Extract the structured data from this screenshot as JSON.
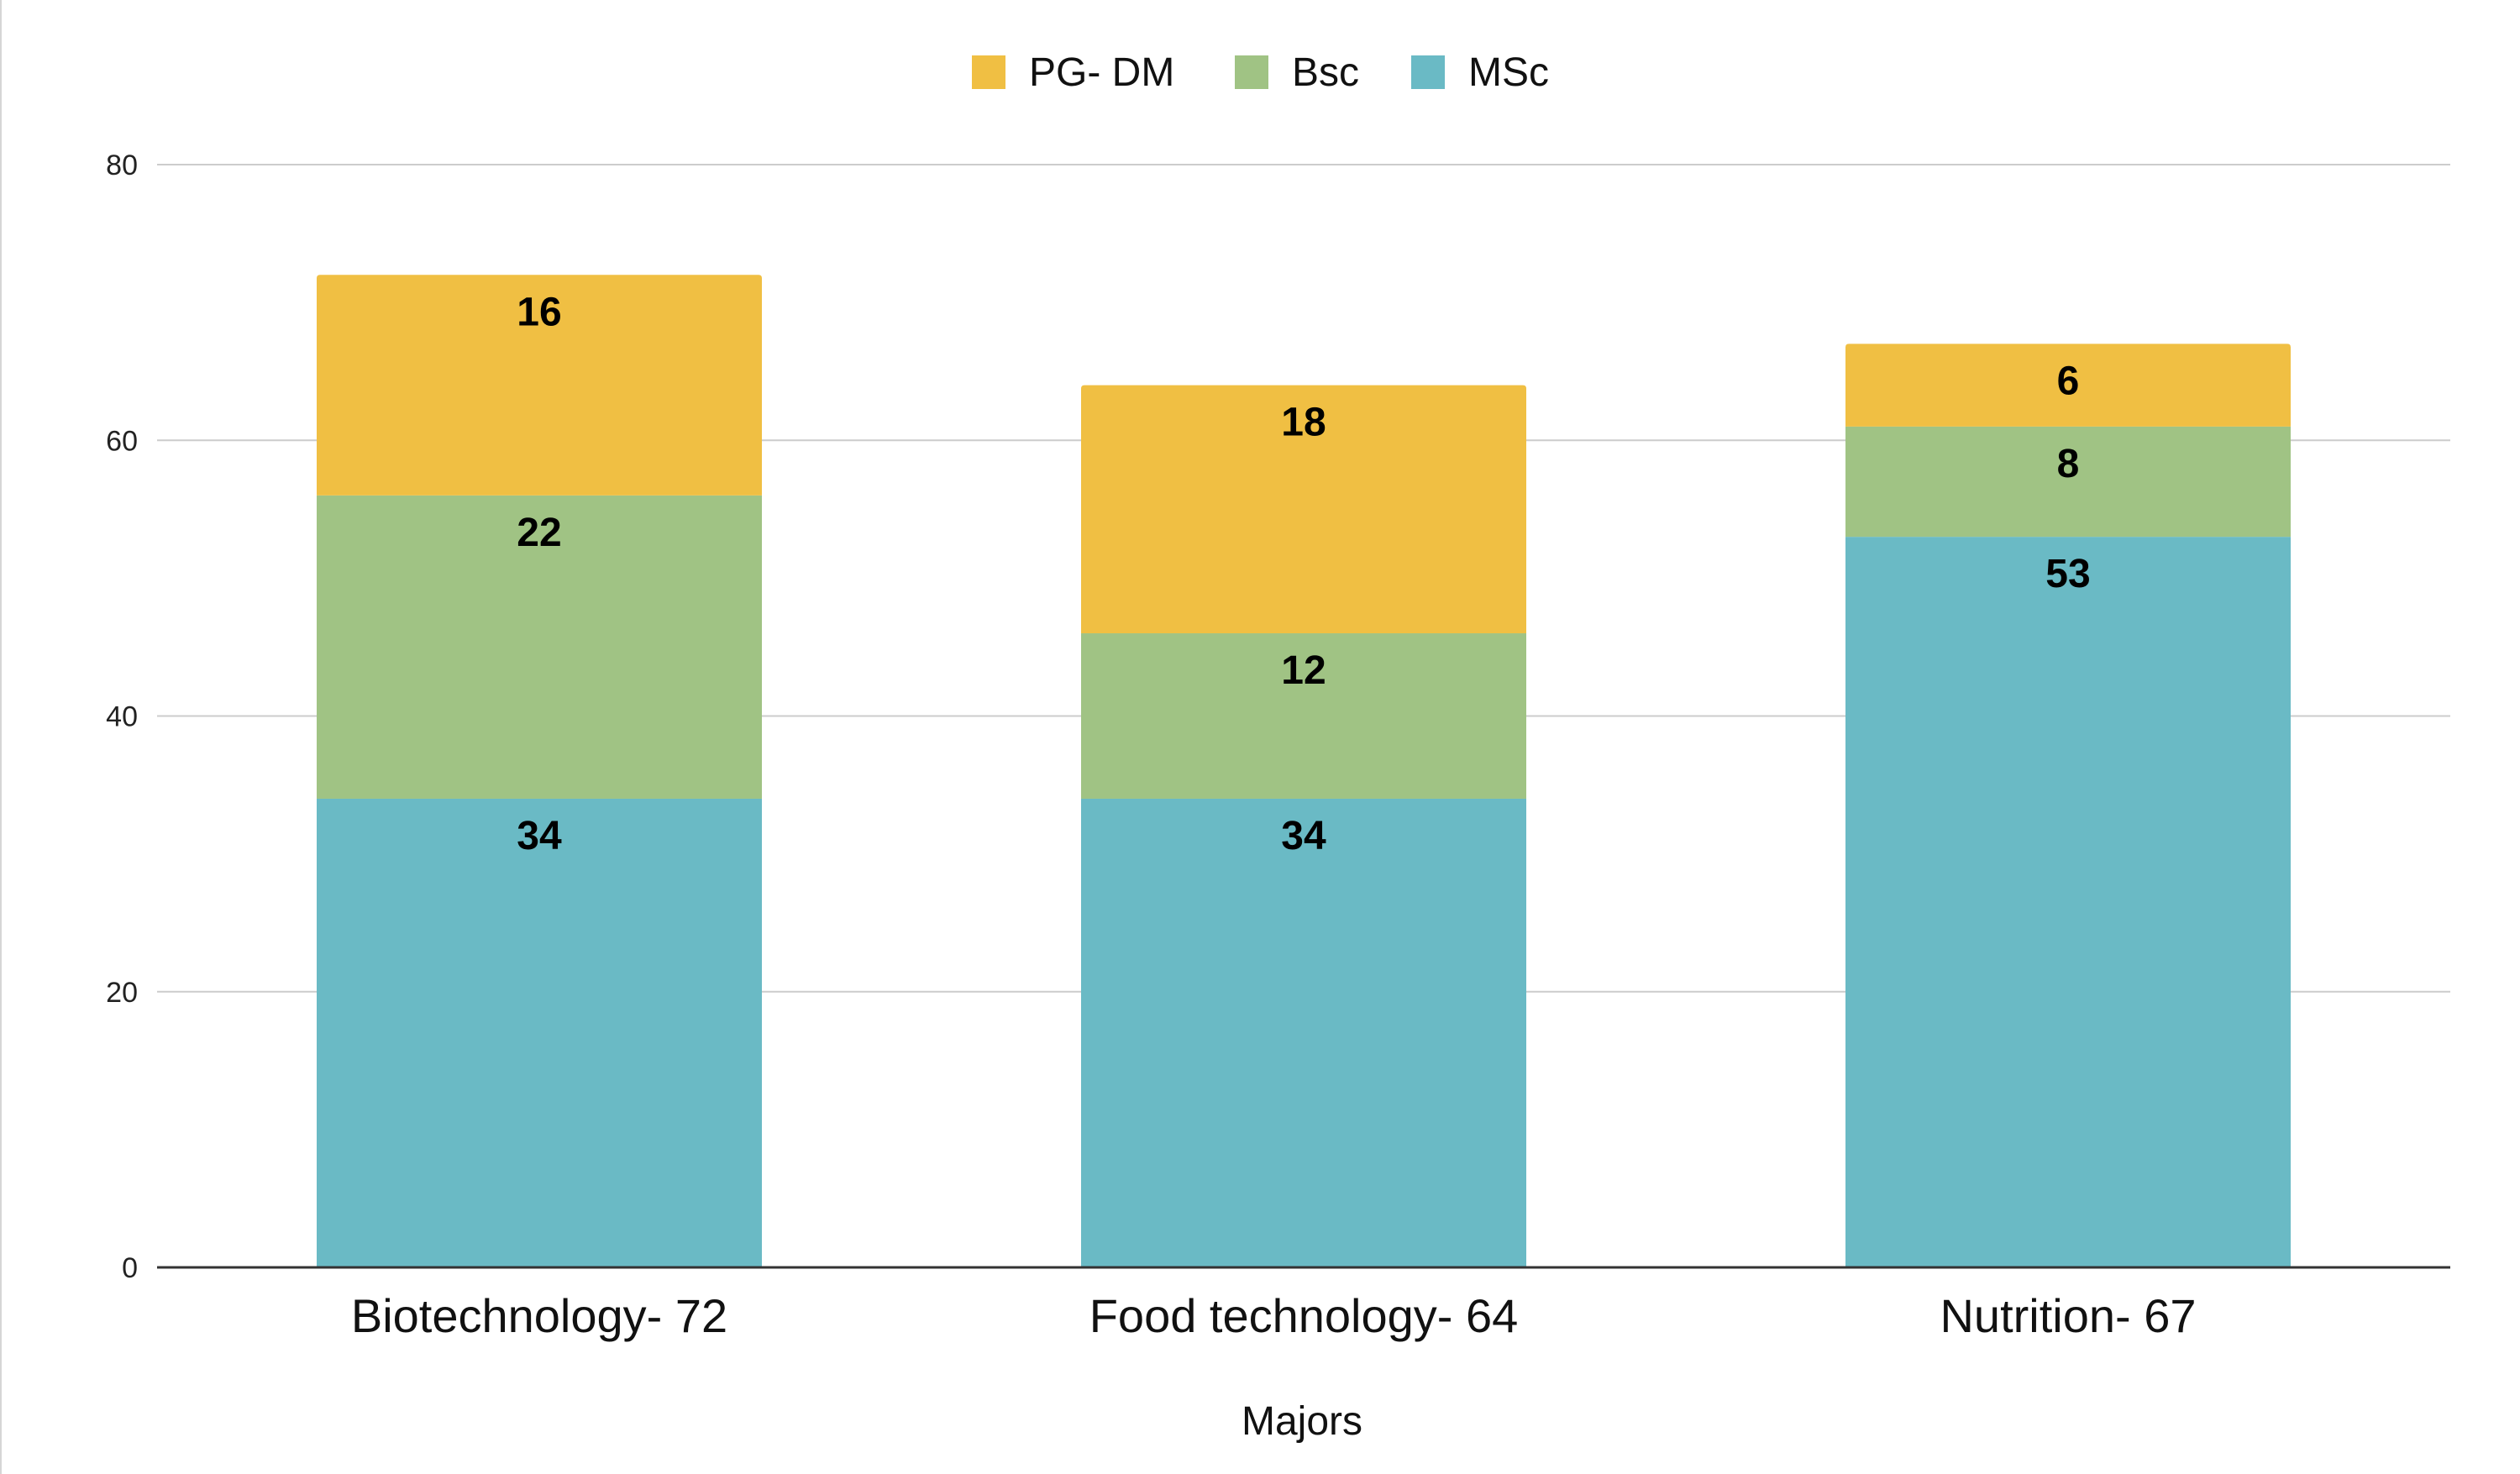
{
  "chart_data": {
    "type": "bar",
    "stacked": true,
    "title": "",
    "xlabel": "Majors",
    "ylabel": "",
    "ylim": [
      0,
      80
    ],
    "yticks": [
      0,
      20,
      40,
      60,
      80
    ],
    "grid": true,
    "legend_position": "top-center",
    "categories": [
      "Biotechnology- 72",
      "Food technology- 64",
      "Nutrition- 67"
    ],
    "series": [
      {
        "name": "MSc",
        "color": "#6abac5",
        "values": [
          34,
          34,
          53
        ]
      },
      {
        "name": "Bsc",
        "color": "#a0c384",
        "values": [
          22,
          12,
          8
        ]
      },
      {
        "name": "PG- DM",
        "color": "#f0bf43",
        "values": [
          16,
          18,
          6
        ]
      }
    ],
    "legend_order": [
      "PG- DM",
      "Bsc",
      "MSc"
    ]
  }
}
